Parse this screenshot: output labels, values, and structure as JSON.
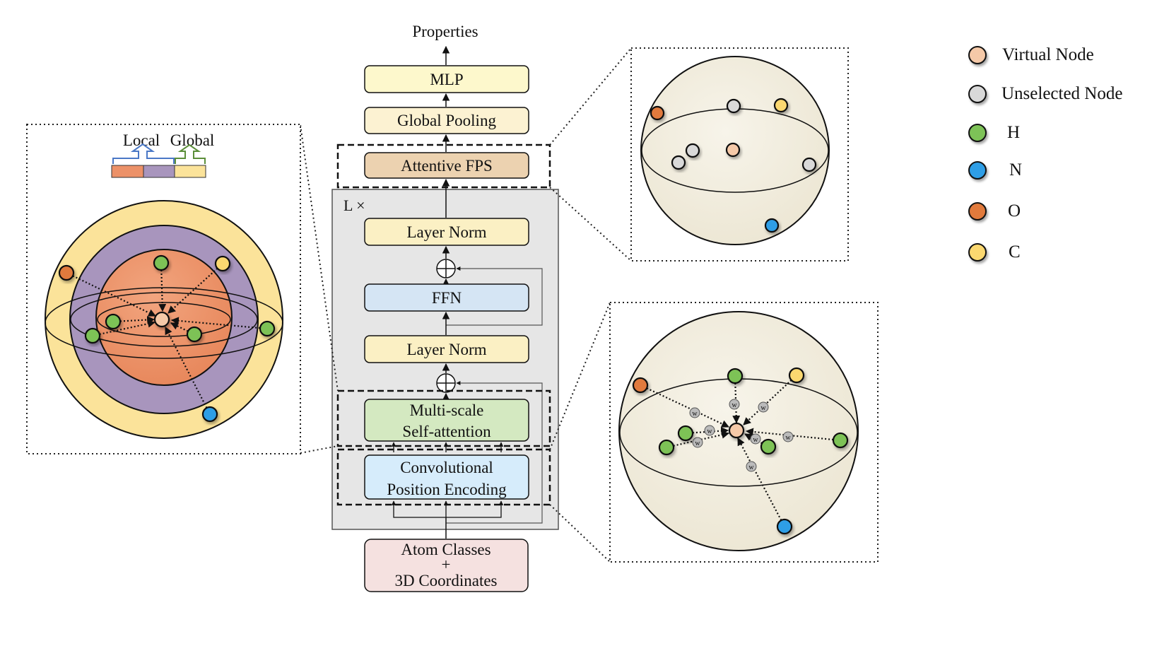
{
  "flowchart": {
    "output_label": "Properties",
    "mlp": "MLP",
    "global_pooling": "Global Pooling",
    "attentive_fps": "Attentive FPS",
    "repeat_label": "L ×",
    "layer_norm_top": "Layer Norm",
    "ffn": "FFN",
    "layer_norm_bottom": "Layer Norm",
    "multiscale_line1": "Multi-scale",
    "multiscale_line2": "Self-attention",
    "conv_pos_line1": "Convolutional",
    "conv_pos_line2": "Position Encoding",
    "input_line1": "Atom Classes",
    "input_line2": "+",
    "input_line3": "3D Coordinates"
  },
  "left_panel": {
    "local_label": "Local",
    "global_label": "Global"
  },
  "weight_marker": "w",
  "legend": [
    {
      "label": "Virtual Node",
      "color": "#f5c9a8"
    },
    {
      "label": "Unselected Node",
      "color": "#d9d9d9"
    },
    {
      "label": "H",
      "color": "#7dc257"
    },
    {
      "label": "N",
      "color": "#2e9ee6"
    },
    {
      "label": "O",
      "color": "#e17a3c"
    },
    {
      "label": "C",
      "color": "#fbd870"
    }
  ],
  "colors": {
    "virtual": "#f5c9a8",
    "unselected": "#d9d9d9",
    "H": "#7dc257",
    "N": "#2e9ee6",
    "O": "#e17a3c",
    "C": "#fbd870",
    "sphere_fill": "#f3efe3",
    "outer_ring": "#fbe39a",
    "middle_ring": "#a895bd",
    "inner_sphere": "#ec9168",
    "box_mlp": "#fdf8cc",
    "box_pool": "#fcf2d2",
    "box_fps": "#ecd2b0",
    "box_norm": "#fbf0c4",
    "box_ffn": "#d5e5f4",
    "box_msa": "#d4e9c1",
    "box_cpe": "#d6ecfb",
    "box_input": "#f5e1e0",
    "block_bg": "#e6e6e6"
  }
}
